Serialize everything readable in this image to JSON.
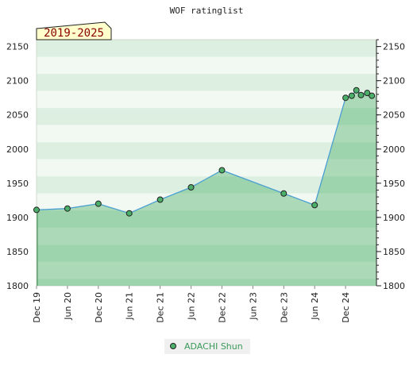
{
  "chart_data": {
    "type": "area",
    "title": "WOF ratinglist",
    "range_label": "2019-2025",
    "y_ticks": [
      1800,
      1850,
      1900,
      1950,
      2000,
      2050,
      2100,
      2150
    ],
    "ylim": [
      1800,
      2160
    ],
    "x_ticks": [
      "Dec 19",
      "Jun 20",
      "Dec 20",
      "Jun 21",
      "Dec 21",
      "Jun 22",
      "Dec 22",
      "Jun 23",
      "Dec 23",
      "Jun 24",
      "Dec 24"
    ],
    "xlim": [
      0,
      11
    ],
    "series": [
      {
        "name": "ADACHI Shun",
        "color": "#4a9fd0",
        "marker_color": "#4caf6a",
        "points": [
          {
            "x": 0.0,
            "y": 1911
          },
          {
            "x": 1.0,
            "y": 1913
          },
          {
            "x": 2.0,
            "y": 1920
          },
          {
            "x": 3.0,
            "y": 1906
          },
          {
            "x": 4.0,
            "y": 1926
          },
          {
            "x": 5.0,
            "y": 1944
          },
          {
            "x": 6.0,
            "y": 1969
          },
          {
            "x": 8.0,
            "y": 1935
          },
          {
            "x": 9.0,
            "y": 1918
          },
          {
            "x": 10.0,
            "y": 2075
          },
          {
            "x": 10.2,
            "y": 2078
          },
          {
            "x": 10.35,
            "y": 2086
          },
          {
            "x": 10.5,
            "y": 2079
          },
          {
            "x": 10.7,
            "y": 2082
          },
          {
            "x": 10.85,
            "y": 2078
          }
        ]
      }
    ],
    "legend": "bottom-center",
    "grid": true
  }
}
